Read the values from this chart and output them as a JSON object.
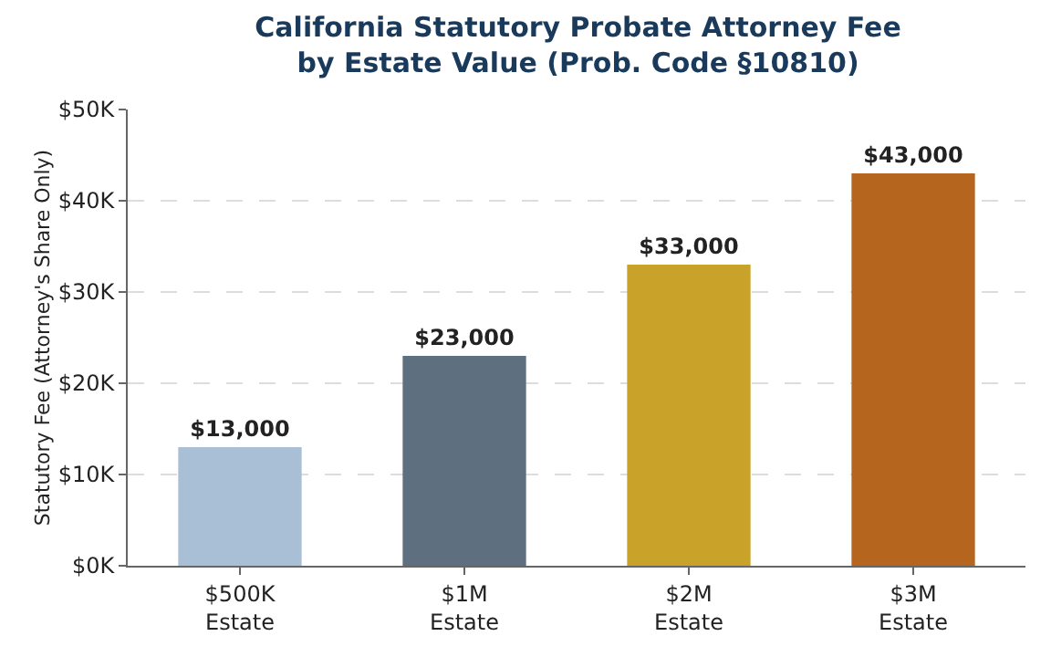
{
  "chart_data": {
    "type": "bar",
    "title": "California Statutory Probate Attorney Fee\nby Estate Value (Prob. Code §10810)",
    "ylabel": "Statutory Fee (Attorney's Share Only)",
    "categories": [
      "$500K\nEstate",
      "$1M\nEstate",
      "$2M\nEstate",
      "$3M\nEstate"
    ],
    "values": [
      13000,
      23000,
      33000,
      43000
    ],
    "colors": [
      "#a8bfd6",
      "#5e7080",
      "#c9a22a",
      "#b5651d"
    ],
    "value_labels": [
      "$13,000",
      "$23,000",
      "$33,000",
      "$43,000"
    ],
    "ylim": [
      0,
      50000
    ],
    "yticks": [
      {
        "value": 0,
        "label": "$0K"
      },
      {
        "value": 10000,
        "label": "$10K"
      },
      {
        "value": 20000,
        "label": "$20K"
      },
      {
        "value": 30000,
        "label": "$30K"
      },
      {
        "value": 40000,
        "label": "$40K"
      },
      {
        "value": 50000,
        "label": "$50K"
      }
    ],
    "grid": "y"
  }
}
